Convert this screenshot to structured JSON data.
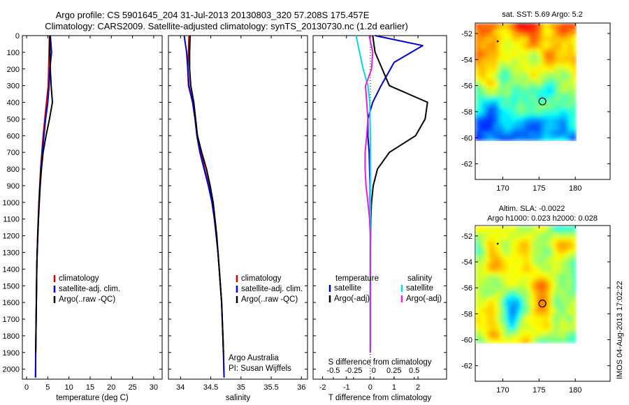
{
  "title_line1": "Argo profile: CS 5901645_204 31-Jul-2013 20130803_320 57.208S 175.457E",
  "title_line2": "Climatology: CARS2009. Satellite-adjusted climatology: synTS_20130730.nc (1.2d earlier)",
  "credit_line1": "Argo Australia",
  "credit_line2": "PI: Susan Wijffels",
  "footer_stamp": "IMOS 04-Aug-2013 17:02:22",
  "colors": {
    "climatology": "#cc0000",
    "satellite": "#0000cc",
    "argo": "#000000",
    "salinity_satellite": "#00d8e8",
    "salinity_argo": "#e020e0"
  },
  "chart_data": [
    {
      "id": "temperature",
      "type": "line",
      "xlabel": "temperature (deg C)",
      "ylabel": "",
      "xlim": [
        -1,
        32
      ],
      "ylim": [
        2060,
        0
      ],
      "xticks": [
        0,
        5,
        10,
        15,
        20,
        25,
        30
      ],
      "xtick_labels": [
        "0",
        "5",
        "10",
        "15",
        "20",
        "25",
        "30"
      ],
      "yticks": [
        0,
        100,
        200,
        300,
        400,
        500,
        600,
        700,
        800,
        900,
        1000,
        1100,
        1200,
        1300,
        1400,
        1500,
        1600,
        1700,
        1800,
        1900,
        2000
      ],
      "ytick_labels": [
        "0",
        "100",
        "200",
        "300",
        "400",
        "500",
        "600",
        "700",
        "800",
        "900",
        "1000",
        "1100",
        "1200",
        "1300",
        "1400",
        "1500",
        "1600",
        "1700",
        "1800",
        "1900",
        "2000"
      ],
      "legend": [
        "climatology",
        "satellite-adj. clim.",
        "Argo(..raw -QC)"
      ],
      "legend_position": "lower-right",
      "series": [
        {
          "name": "climatology",
          "color": "#cc0000",
          "x": [
            5.4,
            5.3,
            5.2,
            5.1,
            4.7,
            4.3,
            3.9,
            3.6,
            3.3,
            3.1,
            2.9,
            2.75,
            2.6,
            2.5,
            2.4,
            2.35,
            2.3,
            2.25,
            2.2,
            2.15,
            2.1
          ],
          "y": [
            0,
            100,
            200,
            300,
            400,
            500,
            600,
            700,
            800,
            900,
            1000,
            1100,
            1200,
            1300,
            1400,
            1500,
            1600,
            1700,
            1800,
            1900,
            2050
          ]
        },
        {
          "name": "satellite-adj. clim.",
          "color": "#0000cc",
          "x": [
            5.6,
            5.9,
            5.5,
            5.3,
            5.0,
            4.5,
            4.1,
            3.7,
            3.4,
            3.15,
            2.95,
            2.8,
            2.65,
            2.5,
            2.4,
            2.35,
            2.3,
            2.25,
            2.2,
            2.15,
            2.1
          ],
          "y": [
            0,
            100,
            200,
            300,
            400,
            500,
            600,
            700,
            800,
            900,
            1000,
            1100,
            1200,
            1300,
            1400,
            1500,
            1600,
            1700,
            1800,
            1900,
            2050
          ]
        },
        {
          "name": "Argo(..raw -QC)",
          "color": "#000000",
          "x": [
            5.5,
            5.5,
            5.6,
            5.8,
            6.1,
            5.4,
            4.6,
            3.9,
            3.5,
            3.2,
            3.0,
            2.8,
            2.65,
            2.5,
            2.4,
            2.35,
            2.3,
            2.25,
            2.2,
            2.15
          ],
          "y": [
            0,
            100,
            200,
            300,
            400,
            500,
            600,
            700,
            800,
            900,
            1000,
            1100,
            1200,
            1300,
            1400,
            1500,
            1600,
            1700,
            1800,
            1900
          ]
        }
      ]
    },
    {
      "id": "salinity",
      "type": "line",
      "xlabel": "salinity",
      "ylabel": "",
      "xlim": [
        33.8,
        36.1
      ],
      "ylim": [
        2060,
        0
      ],
      "xticks": [
        34,
        34.5,
        35,
        35.5,
        36
      ],
      "xtick_labels": [
        "34",
        "34.5",
        "35",
        "35.5",
        "36"
      ],
      "legend": [
        "climatology",
        "satellite-adj. clim.",
        "Argo(..raw -QC)"
      ],
      "legend_position": "lower-right",
      "series": [
        {
          "name": "climatology",
          "color": "#cc0000",
          "x": [
            34.14,
            34.13,
            34.12,
            34.13,
            34.2,
            34.24,
            34.28,
            34.34,
            34.4,
            34.47,
            34.52,
            34.56,
            34.59,
            34.62,
            34.64,
            34.66,
            34.68,
            34.69,
            34.7,
            34.71,
            34.72
          ],
          "y": [
            0,
            100,
            200,
            300,
            400,
            500,
            600,
            700,
            800,
            900,
            1000,
            1100,
            1200,
            1300,
            1400,
            1500,
            1600,
            1700,
            1800,
            1900,
            2050
          ]
        },
        {
          "name": "satellite-adj. clim.",
          "color": "#0000cc",
          "x": [
            34.06,
            34.1,
            34.12,
            34.14,
            34.2,
            34.24,
            34.27,
            34.32,
            34.39,
            34.46,
            34.52,
            34.56,
            34.59,
            34.62,
            34.64,
            34.66,
            34.68,
            34.69,
            34.7,
            34.71,
            34.72
          ],
          "y": [
            0,
            100,
            200,
            300,
            400,
            500,
            600,
            700,
            800,
            900,
            1000,
            1100,
            1200,
            1300,
            1400,
            1500,
            1600,
            1700,
            1800,
            1900,
            2050
          ]
        },
        {
          "name": "Argo(..raw -QC)",
          "color": "#000000",
          "x": [
            34.16,
            34.15,
            34.15,
            34.17,
            34.22,
            34.25,
            34.28,
            34.35,
            34.43,
            34.49,
            34.54,
            34.57,
            34.6,
            34.62,
            34.64,
            34.66,
            34.68,
            34.69,
            34.7,
            34.71
          ],
          "y": [
            0,
            100,
            200,
            300,
            400,
            500,
            600,
            700,
            800,
            900,
            1000,
            1100,
            1200,
            1300,
            1400,
            1500,
            1600,
            1700,
            1800,
            1900
          ]
        }
      ]
    },
    {
      "id": "difference",
      "type": "line",
      "xlabel": "T difference from climatology",
      "top_axis_label": "S difference from climatology",
      "xlim": [
        -2.4,
        3.2
      ],
      "ylim": [
        2060,
        0
      ],
      "xticks": [
        -2,
        -1,
        0,
        1,
        2
      ],
      "xtick_labels": [
        "-2",
        "-1",
        "0",
        "1",
        "2"
      ],
      "sticks": [
        -0.5,
        -0.25,
        0,
        0.25,
        0.5
      ],
      "stick_labels": [
        "-0.5",
        "-0.25",
        "0",
        "0.25",
        "0.5"
      ],
      "legend_groups": [
        "temperature",
        "salinity"
      ],
      "legend": [
        "satellite",
        "Argo(-adj)",
        "satellite",
        "Argo(-adj)"
      ],
      "legend_position": "lower-right",
      "series": [
        {
          "name": "satellite",
          "group": "temperature",
          "color": "#0000cc",
          "x": [
            0.2,
            2.2,
            1.0,
            0.45,
            0.1,
            -0.1,
            -0.1,
            -0.05,
            -0.03,
            -0.01,
            -0.01,
            0,
            0,
            0,
            0,
            0,
            0,
            0,
            0,
            0
          ],
          "y": [
            0,
            60,
            160,
            300,
            400,
            500,
            600,
            700,
            800,
            900,
            1000,
            1100,
            1200,
            1300,
            1400,
            1500,
            1600,
            1700,
            1800,
            1900
          ]
        },
        {
          "name": "Argo(-adj)",
          "group": "temperature",
          "color": "#000000",
          "x": [
            0.1,
            0.2,
            0.5,
            0.8,
            2.4,
            2.3,
            1.9,
            0.8,
            0.3,
            0.12,
            0.05,
            0.02,
            0.01,
            0,
            0,
            0,
            0,
            0,
            0,
            0
          ],
          "y": [
            0,
            100,
            200,
            300,
            400,
            500,
            600,
            700,
            800,
            900,
            1000,
            1100,
            1200,
            1300,
            1400,
            1500,
            1600,
            1700,
            1800,
            1900
          ]
        },
        {
          "name": "satellite",
          "group": "salinity",
          "color": "#00d8e8",
          "x": [
            -0.6,
            -0.45,
            -0.3,
            -0.1,
            -0.02,
            -0.01,
            0,
            0,
            0,
            0,
            0,
            0,
            0,
            0,
            0,
            0,
            0,
            0,
            0,
            0
          ],
          "y": [
            0,
            100,
            200,
            300,
            400,
            500,
            600,
            700,
            800,
            900,
            1000,
            1100,
            1200,
            1300,
            1400,
            1500,
            1600,
            1700,
            1800,
            1900
          ]
        },
        {
          "name": "Argo(-adj)",
          "group": "salinity",
          "color": "#e020e0",
          "x": [
            -0.05,
            0.1,
            0.05,
            -0.2,
            -0.15,
            -0.1,
            -0.15,
            -0.22,
            -0.22,
            -0.18,
            -0.1,
            -0.03,
            0,
            0,
            0,
            0,
            0,
            0,
            0,
            0
          ],
          "y": [
            0,
            100,
            200,
            300,
            400,
            500,
            600,
            700,
            800,
            900,
            1000,
            1100,
            1200,
            1300,
            1400,
            1500,
            1600,
            1700,
            1800,
            1900
          ]
        }
      ]
    },
    {
      "id": "sst_map",
      "type": "heatmap",
      "title": "sat. SST: 5.69 Argo: 5.2",
      "xlim": [
        166.2,
        184.8
      ],
      "ylim": [
        -63.2,
        -51.2
      ],
      "xticks": [
        170,
        175,
        180
      ],
      "xtick_labels": [
        "170",
        "175",
        "180"
      ],
      "yticks": [
        -52,
        -54,
        -56,
        -58,
        -60,
        -62
      ],
      "ytick_labels": [
        "-52",
        "-54",
        "-56",
        "-58",
        "-60",
        "-62"
      ],
      "data_extent": {
        "lon": [
          166.2,
          180
        ],
        "lat": [
          -60.2,
          -51.2
        ]
      },
      "marker": {
        "lon": 175.46,
        "lat": -57.21
      }
    },
    {
      "id": "sla_map",
      "type": "heatmap",
      "title": "Altim. SLA: -0.0022",
      "subtitle": "Argo h1000: 0.023 h2000: 0.028",
      "xlim": [
        166.2,
        184.8
      ],
      "ylim": [
        -63.2,
        -51.2
      ],
      "xticks": [
        170,
        175,
        180
      ],
      "xtick_labels": [
        "170",
        "175",
        "180"
      ],
      "yticks": [
        -52,
        -54,
        -56,
        -58,
        -60,
        -62
      ],
      "ytick_labels": [
        "-52",
        "-54",
        "-56",
        "-58",
        "-60",
        "-62"
      ],
      "data_extent": {
        "lon": [
          166.2,
          180
        ],
        "lat": [
          -60.2,
          -51.2
        ]
      },
      "marker": {
        "lon": 175.46,
        "lat": -57.21
      }
    }
  ]
}
